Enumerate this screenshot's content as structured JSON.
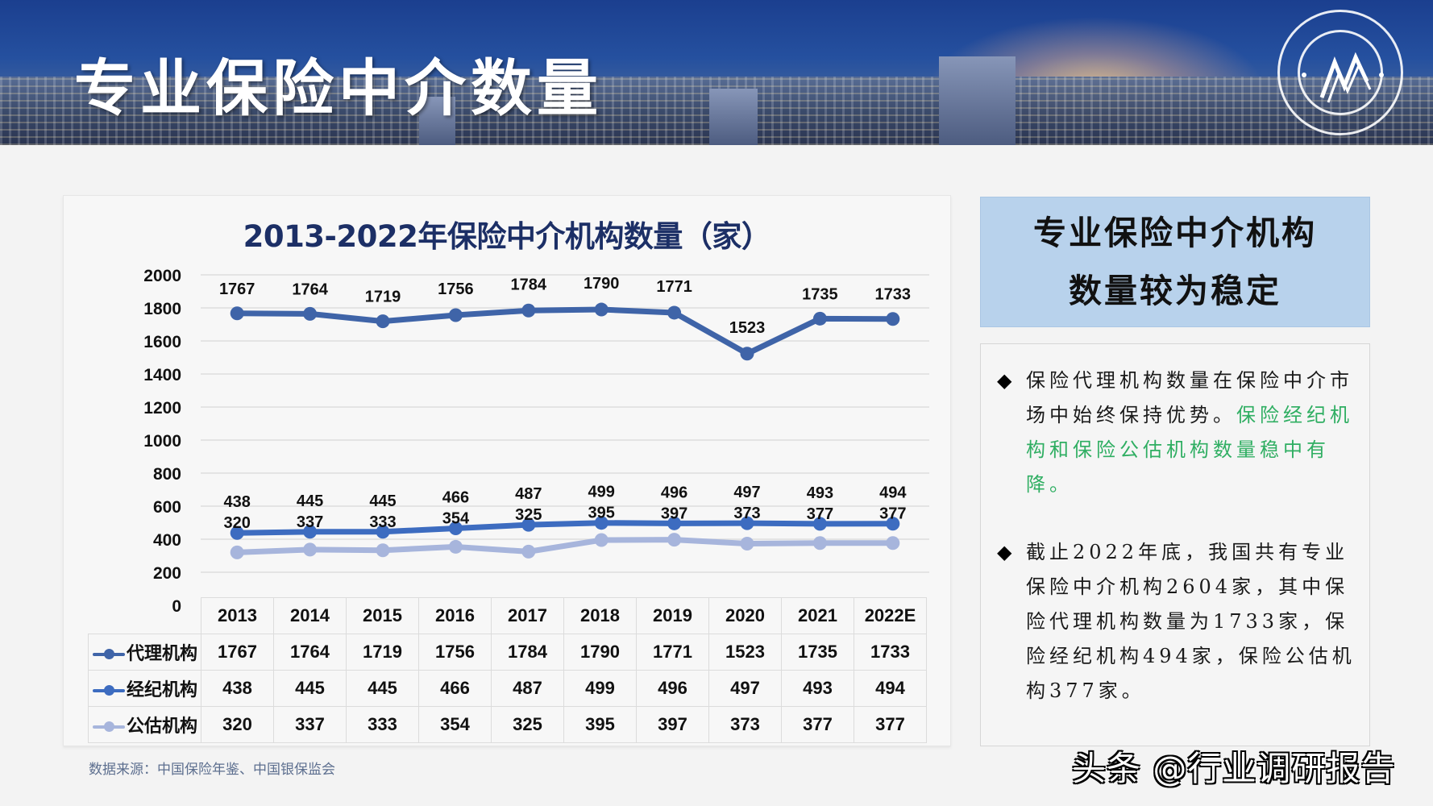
{
  "banner": {
    "title": "专业保险中介数量",
    "logo_icon": "emblem-logo-icon"
  },
  "chart_data": {
    "type": "line",
    "title": "2013-2022年保险中介机构数量（家）",
    "categories": [
      "2013",
      "2014",
      "2015",
      "2016",
      "2017",
      "2018",
      "2019",
      "2020",
      "2021",
      "2022E"
    ],
    "series": [
      {
        "name": "代理机构",
        "color": "#3f64a8",
        "values": [
          1767,
          1764,
          1719,
          1756,
          1784,
          1790,
          1771,
          1523,
          1735,
          1733
        ]
      },
      {
        "name": "经纪机构",
        "color": "#3d6cc0",
        "values": [
          438,
          445,
          445,
          466,
          487,
          499,
          496,
          497,
          493,
          494
        ]
      },
      {
        "name": "公估机构",
        "color": "#a7b5dc",
        "values": [
          320,
          337,
          333,
          354,
          325,
          395,
          397,
          373,
          377,
          377
        ]
      }
    ],
    "y_ticks": [
      "2000",
      "1800",
      "1600",
      "1400",
      "1200",
      "1000",
      "800",
      "600",
      "400",
      "200",
      "0"
    ],
    "ylim": [
      0,
      2000
    ],
    "xlabel": "",
    "ylabel": "",
    "grid": true,
    "legend_position": "data-table-left",
    "data_table": true
  },
  "source": "数据来源：中国保险年鉴、中国银保监会",
  "summary": {
    "line1": "专业保险中介机构",
    "line2": "数量较为稳定"
  },
  "bullets": [
    {
      "icon": "diamond-bullet-icon",
      "text_black": "保险代理机构数量在保险中介市场中始终保持优势。",
      "text_green": "保险经纪机构和保险公估机构数量稳中有降。"
    },
    {
      "icon": "diamond-bullet-icon",
      "text_black": "截止2022年底，我国共有专业保险中介机构2604家，其中保险代理机构数量为1733家，保险经纪机构494家，保险公估机构377家。",
      "text_green": ""
    }
  ],
  "colors": {
    "title_navy": "#1c2f66",
    "summary_bg": "#b8d2ec",
    "highlight_green": "#2fae62"
  },
  "watermark": "头条 @行业调研报告"
}
